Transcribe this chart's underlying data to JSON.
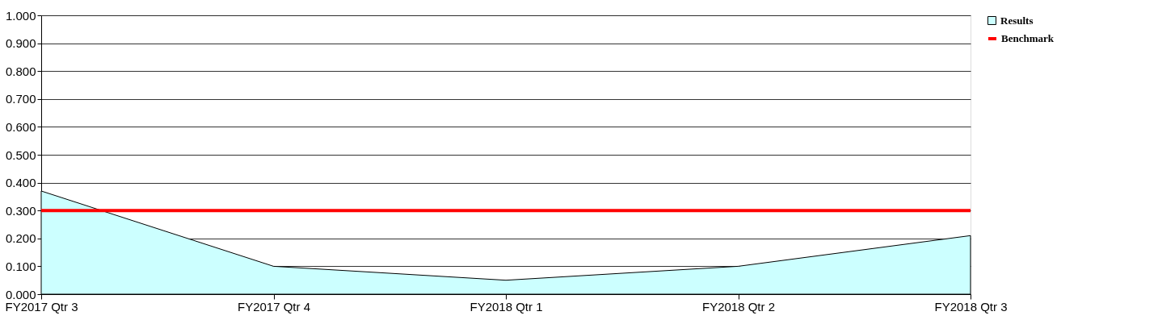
{
  "chart_data": {
    "type": "area",
    "categories": [
      "FY2017 Qtr 3",
      "FY2017 Qtr 4",
      "FY2018 Qtr 1",
      "FY2018 Qtr 2",
      "FY2018 Qtr 3"
    ],
    "series": [
      {
        "name": "Results",
        "color": "#ccffff",
        "values": [
          0.37,
          0.1,
          0.05,
          0.1,
          0.21
        ]
      },
      {
        "name": "Benchmark",
        "type": "line",
        "color": "#ff0000",
        "values": [
          0.3,
          0.3,
          0.3,
          0.3,
          0.3
        ]
      }
    ],
    "ylim": [
      0,
      1
    ],
    "yticks": [
      {
        "value": 0,
        "label": "0.000"
      },
      {
        "value": 0.1,
        "label": "0.100"
      },
      {
        "value": 0.2,
        "label": "0.200"
      },
      {
        "value": 0.3,
        "label": "0.300"
      },
      {
        "value": 0.4,
        "label": "0.400"
      },
      {
        "value": 0.5,
        "label": "0.500"
      },
      {
        "value": 0.6,
        "label": "0.600"
      },
      {
        "value": 0.7,
        "label": "0.700"
      },
      {
        "value": 0.8,
        "label": "0.800"
      },
      {
        "value": 0.9,
        "label": "0.900"
      },
      {
        "value": 1,
        "label": "1.000"
      }
    ],
    "grid": "y",
    "legend": "right"
  }
}
